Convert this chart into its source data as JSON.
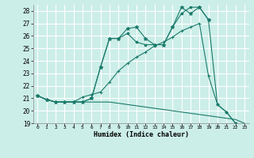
{
  "xlabel": "Humidex (Indice chaleur)",
  "bg_color": "#cceee8",
  "line_color": "#1a7a6a",
  "grid_color": "#ffffff",
  "xlim": [
    -0.5,
    23.5
  ],
  "ylim": [
    19,
    28.5
  ],
  "yticks": [
    19,
    20,
    21,
    22,
    23,
    24,
    25,
    26,
    27,
    28
  ],
  "xticks": [
    0,
    1,
    2,
    3,
    4,
    5,
    6,
    7,
    8,
    9,
    10,
    11,
    12,
    13,
    14,
    15,
    16,
    17,
    18,
    19,
    20,
    21,
    22,
    23
  ],
  "series": [
    {
      "x": [
        0,
        1,
        2,
        3,
        4,
        5,
        6,
        7,
        8,
        9,
        10,
        11,
        12,
        13,
        14,
        15,
        16,
        17,
        18,
        19
      ],
      "y": [
        21.2,
        20.9,
        20.7,
        20.7,
        20.7,
        20.7,
        21.0,
        23.5,
        25.8,
        25.8,
        26.6,
        26.7,
        25.8,
        25.3,
        25.3,
        26.7,
        28.3,
        27.8,
        28.3,
        27.3
      ],
      "marker": "*",
      "ms": 3.5
    },
    {
      "x": [
        0,
        1,
        2,
        3,
        4,
        5,
        6,
        7,
        8,
        9,
        10,
        11,
        12,
        13,
        14,
        15,
        16,
        17,
        18,
        19,
        20,
        21,
        22
      ],
      "y": [
        21.2,
        20.9,
        20.7,
        20.7,
        20.7,
        21.1,
        21.3,
        21.5,
        22.3,
        23.2,
        23.8,
        24.3,
        24.7,
        25.2,
        25.5,
        25.9,
        26.4,
        26.7,
        27.0,
        22.8,
        20.5,
        19.9,
        19.0
      ],
      "marker": "+",
      "ms": 3.5
    },
    {
      "x": [
        0,
        1,
        2,
        3,
        4,
        5,
        6,
        7,
        8,
        9,
        10,
        11,
        12,
        13,
        14,
        15,
        16,
        17,
        18,
        19,
        20,
        21,
        22,
        23
      ],
      "y": [
        21.2,
        20.9,
        20.7,
        20.7,
        20.7,
        20.7,
        20.7,
        20.7,
        20.7,
        20.6,
        20.5,
        20.4,
        20.3,
        20.2,
        20.1,
        20.0,
        19.9,
        19.8,
        19.7,
        19.6,
        19.5,
        19.4,
        19.3,
        19.0
      ],
      "marker": null,
      "ms": 0
    },
    {
      "x": [
        0,
        1,
        2,
        3,
        4,
        5,
        6,
        7,
        8,
        9,
        10,
        11,
        12,
        13,
        14,
        15,
        16,
        17,
        18,
        19,
        20,
        21,
        22
      ],
      "y": [
        21.2,
        20.9,
        20.7,
        20.7,
        20.7,
        20.7,
        21.0,
        23.5,
        25.8,
        25.8,
        26.2,
        25.5,
        25.3,
        25.3,
        25.3,
        26.7,
        27.8,
        28.3,
        28.3,
        27.3,
        20.5,
        19.9,
        19.0
      ],
      "marker": "o",
      "ms": 2.0
    }
  ]
}
